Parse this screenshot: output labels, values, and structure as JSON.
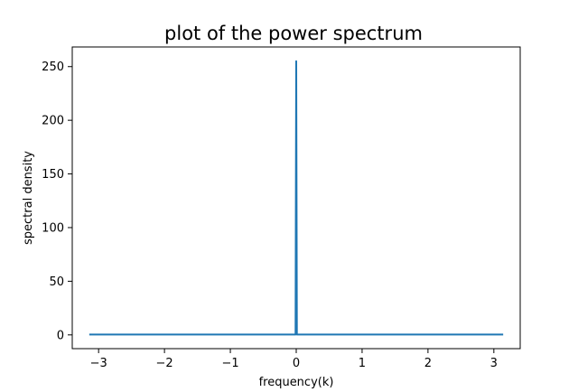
{
  "chart_data": {
    "type": "line",
    "title": "plot of the power spectrum",
    "xlabel": "frequency(k)",
    "ylabel": "spectral density",
    "xlim": [
      -3.4,
      3.4
    ],
    "ylim": [
      -12.8,
      268.3
    ],
    "xticks": [
      -3,
      -2,
      -1,
      0,
      1,
      2,
      3
    ],
    "xtick_labels": [
      "−3",
      "−2",
      "−1",
      "0",
      "1",
      "2",
      "3"
    ],
    "yticks": [
      0,
      50,
      100,
      150,
      200,
      250
    ],
    "ytick_labels": [
      "0",
      "50",
      "100",
      "150",
      "200",
      "250"
    ],
    "grid": false,
    "line_color": "#1f77b4",
    "series": [
      {
        "x": [
          -3.1416,
          -2.5,
          -1.5,
          -0.5,
          -0.01,
          0.0,
          0.01,
          0.5,
          1.5,
          2.5,
          3.1416
        ],
        "y": [
          0.4,
          0.4,
          0.4,
          0.4,
          0.4,
          255,
          0.4,
          0.4,
          0.4,
          0.4,
          0.4
        ]
      }
    ]
  }
}
